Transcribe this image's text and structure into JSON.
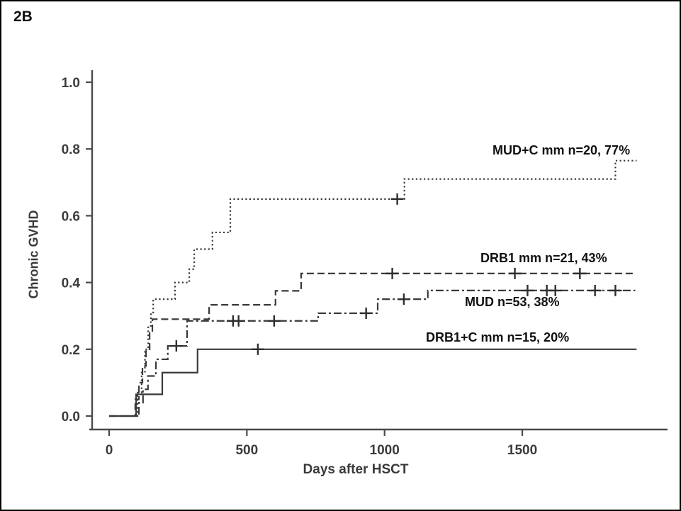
{
  "figure_label": "2B",
  "chart_data": {
    "type": "line",
    "subtype": "kaplan-meier-cumulative-incidence-steps",
    "title": "",
    "xlabel": "Days after HSCT",
    "ylabel": "Chronic GVHD",
    "xlim": [
      0,
      2025
    ],
    "ylim": [
      0,
      1.0
    ],
    "x_ticks": [
      0,
      500,
      1000,
      1500
    ],
    "y_ticks": [
      "0.0",
      "0.2",
      "0.4",
      "0.6",
      "0.8",
      "1.0"
    ],
    "grid": false,
    "legend_position": "labels-at-curve-ends",
    "line_color": "#3a3a3a",
    "label_color": "#111111",
    "series": [
      {
        "name": "MUD+C mm",
        "label": "MUD+C mm n=20, 77%",
        "n": 20,
        "final_percent": 77,
        "line_style": "dotted",
        "start": [
          0,
          0
        ],
        "step_changes": [
          [
            103,
            0.07
          ],
          [
            118,
            0.13
          ],
          [
            130,
            0.2
          ],
          [
            142,
            0.27
          ],
          [
            152,
            0.31
          ],
          [
            160,
            0.35
          ],
          [
            239,
            0.4
          ],
          [
            291,
            0.44
          ],
          [
            309,
            0.5
          ],
          [
            375,
            0.55
          ],
          [
            440,
            0.65
          ],
          [
            1072,
            0.71
          ],
          [
            1838,
            0.765
          ]
        ],
        "end_day": 1915,
        "censor_marks": [
          [
            1046,
            0.65
          ]
        ]
      },
      {
        "name": "DRB1 mm",
        "label": "DRB1 mm n=21, 43%",
        "n": 21,
        "final_percent": 43,
        "line_style": "dashed",
        "start": [
          0,
          0
        ],
        "step_changes": [
          [
            95,
            0.05
          ],
          [
            108,
            0.1
          ],
          [
            121,
            0.15
          ],
          [
            134,
            0.2
          ],
          [
            147,
            0.25
          ],
          [
            157,
            0.29
          ],
          [
            363,
            0.333
          ],
          [
            604,
            0.375
          ],
          [
            697,
            0.427
          ]
        ],
        "end_day": 1905,
        "censor_marks": [
          [
            1028,
            0.427
          ],
          [
            1473,
            0.427
          ],
          [
            1709,
            0.427
          ]
        ]
      },
      {
        "name": "MUD",
        "label": "MUD n=53, 38%",
        "n": 53,
        "final_percent": 38,
        "line_style": "dashdot",
        "start": [
          0,
          0
        ],
        "step_changes": [
          [
            108,
            0.04
          ],
          [
            123,
            0.08
          ],
          [
            141,
            0.12
          ],
          [
            170,
            0.17
          ],
          [
            213,
            0.21
          ],
          [
            283,
            0.285
          ],
          [
            759,
            0.308
          ],
          [
            975,
            0.35
          ],
          [
            1157,
            0.376
          ]
        ],
        "end_day": 1910,
        "censor_marks": [
          [
            244,
            0.21
          ],
          [
            450,
            0.285
          ],
          [
            470,
            0.285
          ],
          [
            599,
            0.285
          ],
          [
            933,
            0.308
          ],
          [
            1070,
            0.35
          ],
          [
            1519,
            0.376
          ],
          [
            1589,
            0.376
          ],
          [
            1620,
            0.376
          ],
          [
            1764,
            0.376
          ],
          [
            1838,
            0.376
          ]
        ]
      },
      {
        "name": "DRB1+C mm",
        "label": "DRB1+C mm n=15, 20%",
        "n": 15,
        "final_percent": 20,
        "line_style": "solid",
        "start": [
          0,
          0
        ],
        "step_changes": [
          [
            98,
            0.065
          ],
          [
            193,
            0.13
          ],
          [
            321,
            0.2
          ]
        ],
        "end_day": 1915,
        "censor_marks": [
          [
            540,
            0.2
          ]
        ]
      }
    ]
  }
}
